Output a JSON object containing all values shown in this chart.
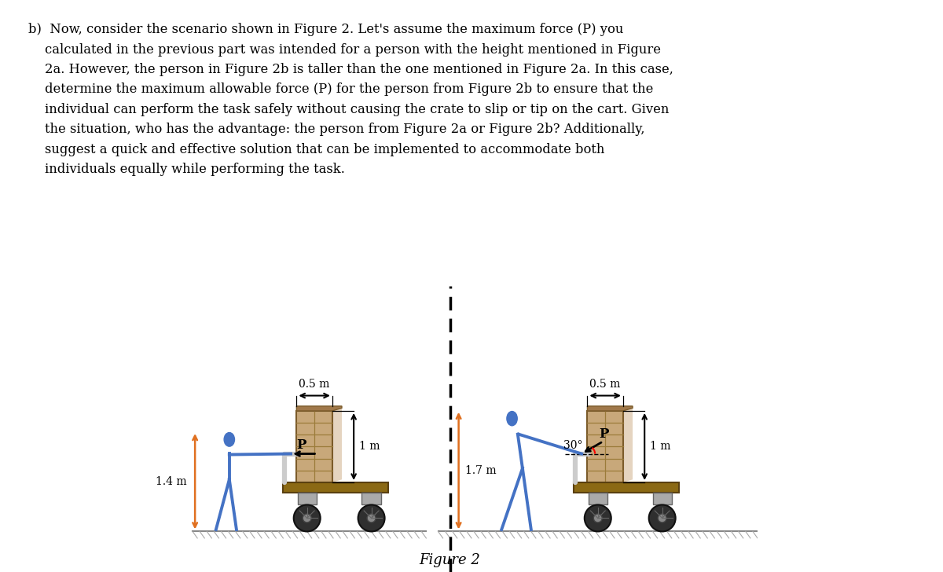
{
  "bg_color": "#FFFFFF",
  "person_color": "#4472C4",
  "crate_face_color": "#C8A87A",
  "crate_edge_color": "#7B5B2A",
  "crate_grain_color": "#9B7B3A",
  "crate_shadow_color": "#D4B896",
  "crate_top_color": "#A0784A",
  "cart_color": "#8B6914",
  "cart_edge_color": "#5A4010",
  "wheel_base_color": "#AAAAAA",
  "wheel_color": "#2F2F2F",
  "wheel_hub_color": "#888888",
  "handle_color": "#CCCCCC",
  "ground_line_color": "#888888",
  "ground_hatch_color": "#AAAAAA",
  "dim_orange_color": "#E07020",
  "force_label": "P",
  "angle_label": "30°",
  "height_a_label": "1.4 m",
  "height_b_label": "1.7 m",
  "crate_h_label": "1 m",
  "crate_w_label": "0.5 m",
  "figure_label": "Figure 2",
  "text_b_label": "b)",
  "paragraph": "Now, consider the scenario shown in Figure 2. Let's assume the maximum force (P) you\ncalculated in the previous part was intended for a person with the height mentioned in Figure\n2a. However, the person in Figure 2b is taller than the one mentioned in Figure 2a. In this case,\ndetermine the maximum allowable force (P) for the person from Figure 2b to ensure that the\nindividual can perform the task safely without causing the crate to slip or tip on the cart. Given\nthe situation, who has the advantage: the person from Figure 2a or Figure 2b? Additionally,\nsuggest a quick and effective solution that can be implemented to accommodate both\nindividuals equally while performing the task."
}
